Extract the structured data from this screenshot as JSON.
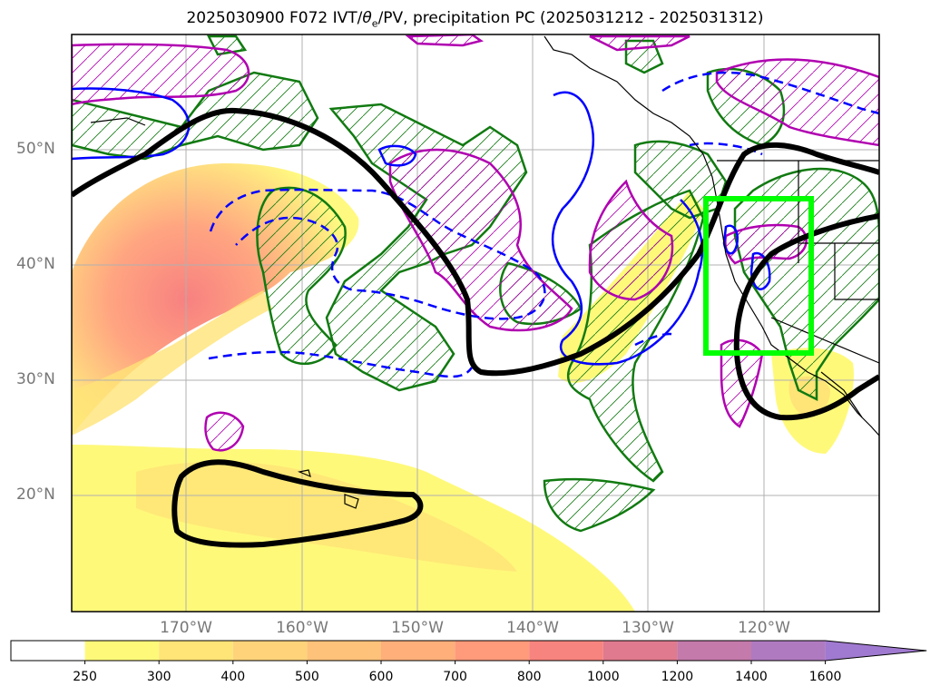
{
  "title": {
    "prefix": "2025030900 F072 IVT/",
    "theta_symbol": "θ",
    "theta_sub": "e",
    "suffix": "/PV, precipitation PC (2025031212 - 2025031312)"
  },
  "map": {
    "lat_labels": [
      "50°N",
      "40°N",
      "30°N",
      "20°N"
    ],
    "lon_labels": [
      "170°W",
      "160°W",
      "150°W",
      "140°W",
      "130°W",
      "120°W"
    ],
    "grid": true,
    "colors": {
      "ivt_contour": "#000000",
      "theta_e_positive": "#0000ff",
      "theta_e_negative_dashed": "#0000ff",
      "pv_hatched": "#b000b0",
      "precip_hatched": "#117a11",
      "target_box": "#00ff00",
      "coastline": "#000000",
      "gridline": "#b0b0b0",
      "axis_label": "#777777"
    }
  },
  "colorbar": {
    "levels": [
      "250",
      "300",
      "400",
      "500",
      "600",
      "700",
      "800",
      "1000",
      "1200",
      "1400",
      "1600"
    ],
    "colors": [
      "#ffffff",
      "#fff97a",
      "#ffe477",
      "#ffd37a",
      "#ffc27a",
      "#ffaf7a",
      "#ff9a7a",
      "#f7847e",
      "#e07a8e",
      "#c47aaa",
      "#b07ac0",
      "#a07ad0"
    ],
    "extend": "max"
  }
}
